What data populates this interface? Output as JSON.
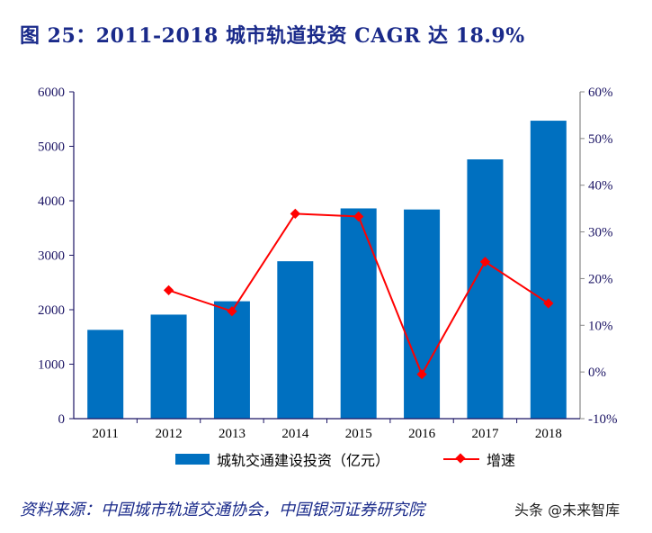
{
  "title": "图 25：2011-2018 城市轨道投资 CAGR 达 18.9%",
  "source": "资料来源：中国城市轨道交通协会，中国银河证券研究院",
  "watermark": "头条 @未来智库",
  "chart_data": {
    "type": "bar+line",
    "title": "",
    "categories": [
      "2011",
      "2012",
      "2013",
      "2014",
      "2015",
      "2016",
      "2017",
      "2018"
    ],
    "series": [
      {
        "name": "城轨交通建设投资（亿元）",
        "type": "bar",
        "axis": "left",
        "color": "#0070c0",
        "values": [
          1630,
          1910,
          2155,
          2890,
          3860,
          3840,
          4760,
          5470
        ]
      },
      {
        "name": "增速",
        "type": "line",
        "axis": "right",
        "color": "#ff0000",
        "values": [
          null,
          17.5,
          13.0,
          33.9,
          33.3,
          -0.5,
          23.6,
          14.7
        ]
      }
    ],
    "left_axis": {
      "ylim": [
        0,
        6000
      ],
      "ticks": [
        "0",
        "1000",
        "2000",
        "3000",
        "4000",
        "5000",
        "6000"
      ]
    },
    "right_axis": {
      "ylim": [
        -10,
        60
      ],
      "ticks": [
        "-10%",
        "0%",
        "10%",
        "20%",
        "30%",
        "40%",
        "50%",
        "60%"
      ]
    },
    "grid": false,
    "legend": "bottom"
  }
}
